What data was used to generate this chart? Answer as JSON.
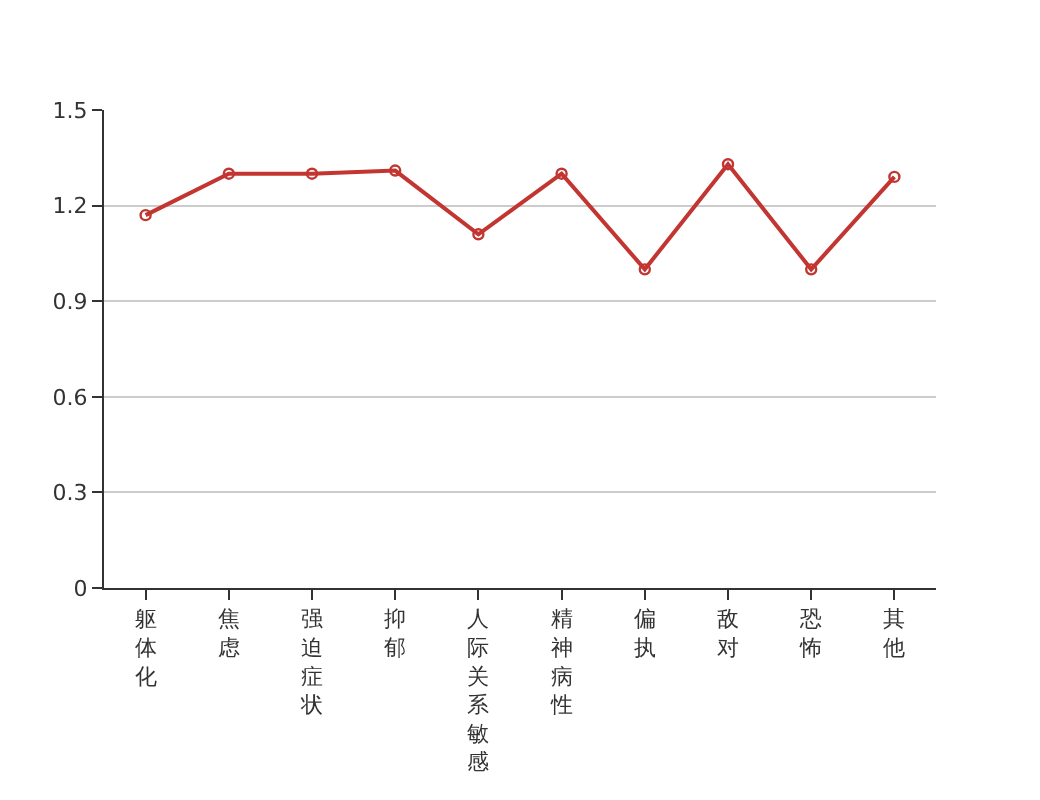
{
  "chart_data": {
    "type": "line",
    "categories": [
      "躯体化",
      "焦虑",
      "强迫症状",
      "抑郁",
      "人际关系敏感",
      "精神病性",
      "偏执",
      "敌对",
      "恐怖",
      "其他"
    ],
    "series": [
      {
        "color": "#c23531",
        "values": [
          1.17,
          1.3,
          1.3,
          1.31,
          1.11,
          1.3,
          1.0,
          1.33,
          1.0,
          1.29
        ]
      }
    ],
    "ylim": [
      0,
      1.5
    ],
    "yticks": [
      0,
      0.3,
      0.6,
      0.9,
      1.2,
      1.5
    ],
    "grid": "y",
    "marker": "circle",
    "line_style": "solid"
  }
}
